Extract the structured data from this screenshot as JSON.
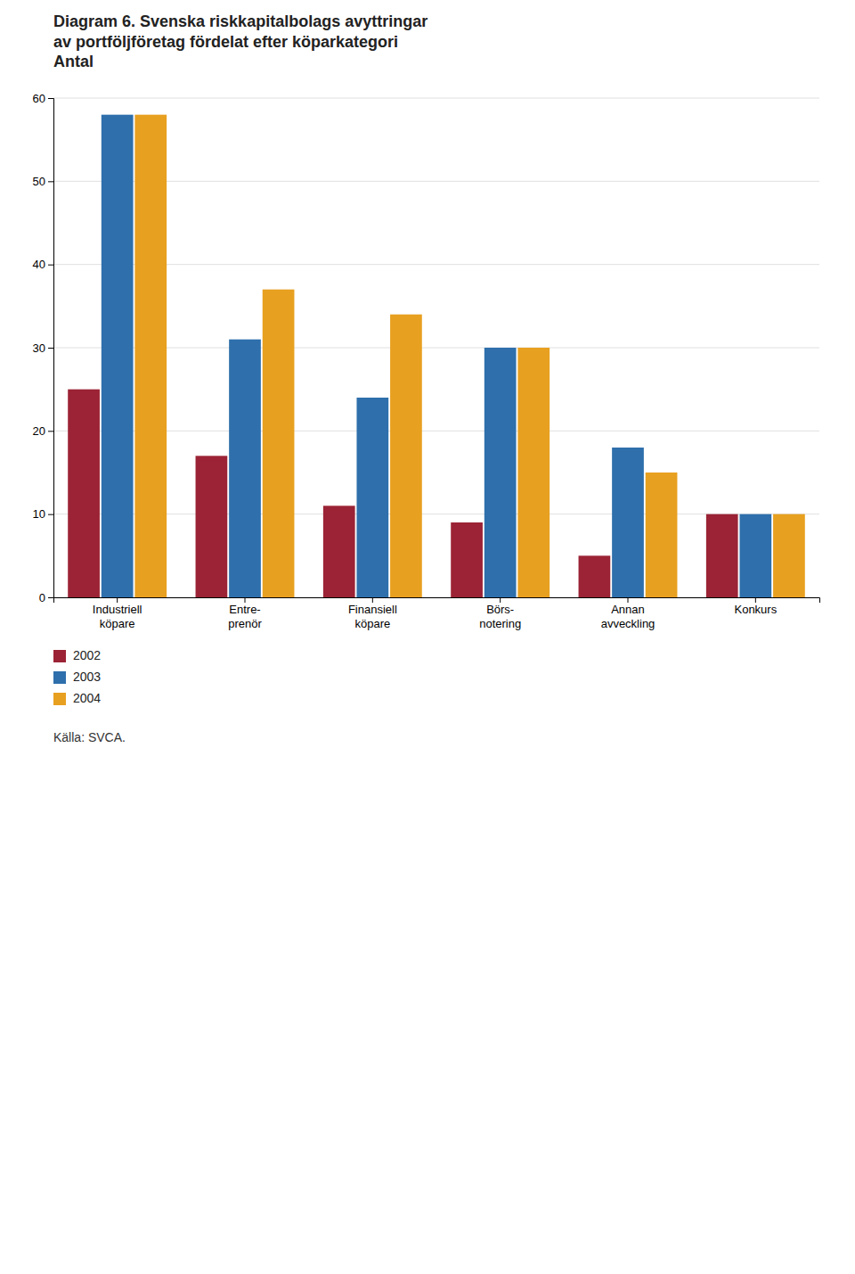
{
  "chart_data": {
    "type": "bar",
    "title": "Diagram 6. Svenska riskkapitalbolags avyttringar\nav portföljföretag fördelat efter köparkategori\nAntal",
    "categories": [
      "Industriell\nköpare",
      "Entre-\nprenör",
      "Finansiell\nköpare",
      "Börs-\nnotering",
      "Annan\navveckling",
      "Konkurs"
    ],
    "series": [
      {
        "name": "2002",
        "color": "#9b2335",
        "values": [
          25,
          17,
          11,
          9,
          5,
          10
        ]
      },
      {
        "name": "2003",
        "color": "#2e6fac",
        "values": [
          58,
          31,
          24,
          30,
          18,
          10
        ]
      },
      {
        "name": "2004",
        "color": "#e8a020",
        "values": [
          58,
          37,
          34,
          30,
          15,
          10
        ]
      }
    ],
    "ylim": [
      0,
      60
    ],
    "yticks": [
      0,
      10,
      20,
      30,
      40,
      50,
      60
    ],
    "grid": true,
    "legend": "lower left",
    "annotations": [
      "Källa: SVCA."
    ]
  }
}
